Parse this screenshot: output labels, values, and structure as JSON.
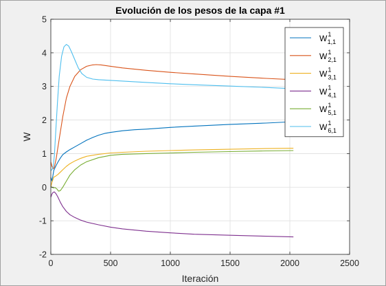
{
  "chart_data": {
    "type": "line",
    "title": "Evolución de los pesos de la capa #1",
    "xlabel": "Iteración",
    "ylabel": "W",
    "xlim": [
      0,
      2500
    ],
    "ylim": [
      -2,
      5
    ],
    "xticks": [
      0,
      500,
      1000,
      1500,
      2000,
      2500
    ],
    "yticks": [
      -2,
      -1,
      0,
      1,
      2,
      3,
      4,
      5
    ],
    "grid": true,
    "legend_position": "top-right",
    "series": [
      {
        "name": "W",
        "sup": "1",
        "sub": "1,1",
        "color": "#0072BD",
        "x": [
          0,
          10,
          25,
          40,
          60,
          80,
          100,
          130,
          160,
          200,
          250,
          300,
          350,
          400,
          450,
          500,
          600,
          700,
          800,
          1000,
          1200,
          1500,
          1800,
          2030
        ],
        "y": [
          0.3,
          0.18,
          0.5,
          0.62,
          0.75,
          0.87,
          0.97,
          1.05,
          1.12,
          1.2,
          1.3,
          1.4,
          1.48,
          1.55,
          1.6,
          1.63,
          1.68,
          1.71,
          1.73,
          1.78,
          1.82,
          1.87,
          1.91,
          1.95
        ]
      },
      {
        "name": "W",
        "sup": "1",
        "sub": "2,1",
        "color": "#D95319",
        "x": [
          0,
          10,
          20,
          30,
          45,
          60,
          80,
          100,
          130,
          160,
          200,
          250,
          300,
          350,
          380,
          420,
          500,
          600,
          800,
          1000,
          1200,
          1500,
          1800,
          2030
        ],
        "y": [
          0.75,
          0.62,
          0.55,
          0.6,
          0.85,
          1.2,
          1.65,
          2.1,
          2.65,
          3.0,
          3.3,
          3.5,
          3.6,
          3.64,
          3.65,
          3.64,
          3.6,
          3.55,
          3.48,
          3.42,
          3.37,
          3.3,
          3.24,
          3.2
        ]
      },
      {
        "name": "W",
        "sup": "1",
        "sub": "3,1",
        "color": "#EDB120",
        "x": [
          0,
          10,
          25,
          40,
          60,
          80,
          100,
          130,
          160,
          200,
          250,
          300,
          400,
          500,
          600,
          800,
          1000,
          1200,
          1500,
          1800,
          2030
        ],
        "y": [
          0.0,
          0.15,
          0.3,
          0.33,
          0.38,
          0.45,
          0.52,
          0.62,
          0.7,
          0.78,
          0.86,
          0.92,
          0.98,
          1.02,
          1.04,
          1.07,
          1.09,
          1.11,
          1.13,
          1.15,
          1.16
        ]
      },
      {
        "name": "W",
        "sup": "1",
        "sub": "4,1",
        "color": "#7E2F8E",
        "x": [
          0,
          10,
          20,
          30,
          45,
          60,
          80,
          100,
          130,
          160,
          200,
          250,
          300,
          400,
          500,
          600,
          800,
          1000,
          1200,
          1500,
          1800,
          2030
        ],
        "y": [
          -0.3,
          -0.2,
          -0.15,
          -0.14,
          -0.2,
          -0.3,
          -0.45,
          -0.58,
          -0.72,
          -0.82,
          -0.9,
          -0.98,
          -1.04,
          -1.12,
          -1.19,
          -1.24,
          -1.31,
          -1.36,
          -1.4,
          -1.43,
          -1.46,
          -1.48
        ]
      },
      {
        "name": "W",
        "sup": "1",
        "sub": "5,1",
        "color": "#77AC30",
        "x": [
          0,
          10,
          20,
          35,
          50,
          65,
          80,
          100,
          130,
          160,
          200,
          250,
          300,
          400,
          500,
          600,
          800,
          1000,
          1200,
          1500,
          1800,
          2030
        ],
        "y": [
          0.02,
          0.0,
          -0.02,
          -0.01,
          -0.05,
          -0.12,
          -0.1,
          0.0,
          0.18,
          0.36,
          0.52,
          0.66,
          0.76,
          0.88,
          0.95,
          0.98,
          1.0,
          1.02,
          1.04,
          1.06,
          1.08,
          1.09
        ]
      },
      {
        "name": "W",
        "sup": "1",
        "sub": "6,1",
        "color": "#4DBEEE",
        "x": [
          0,
          10,
          20,
          30,
          40,
          55,
          70,
          90,
          110,
          130,
          150,
          170,
          200,
          230,
          260,
          300,
          350,
          400,
          500,
          600,
          800,
          1000,
          1200,
          1500,
          1800,
          2030
        ],
        "y": [
          0.5,
          0.52,
          0.62,
          0.95,
          1.6,
          2.5,
          3.3,
          3.9,
          4.18,
          4.25,
          4.2,
          4.05,
          3.8,
          3.55,
          3.38,
          3.27,
          3.22,
          3.2,
          3.18,
          3.16,
          3.12,
          3.08,
          3.05,
          3.01,
          2.97,
          2.93
        ]
      }
    ]
  }
}
